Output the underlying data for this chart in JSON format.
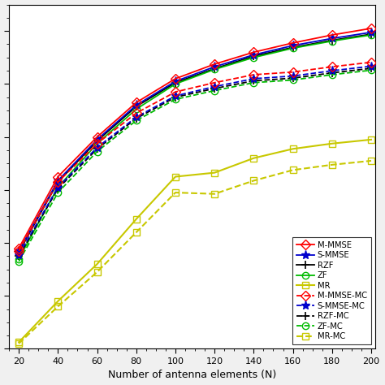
{
  "x": [
    20,
    40,
    60,
    80,
    100,
    120,
    140,
    160,
    180,
    200
  ],
  "M_MMSE": [
    3.8,
    6.5,
    8.0,
    9.3,
    10.2,
    10.75,
    11.2,
    11.55,
    11.85,
    12.1
  ],
  "S_MMSE": [
    3.7,
    6.35,
    7.9,
    9.2,
    10.1,
    10.65,
    11.1,
    11.45,
    11.72,
    11.95
  ],
  "RZF": [
    3.65,
    6.3,
    7.85,
    9.15,
    10.05,
    10.58,
    11.05,
    11.38,
    11.65,
    11.88
  ],
  "ZF": [
    3.4,
    6.1,
    7.75,
    9.05,
    10.0,
    10.55,
    11.0,
    11.35,
    11.62,
    11.85
  ],
  "MR": [
    0.25,
    1.8,
    3.2,
    4.9,
    6.5,
    6.65,
    7.2,
    7.55,
    7.75,
    7.9
  ],
  "M_MMSE_MC": [
    3.7,
    6.3,
    7.75,
    8.9,
    9.7,
    10.05,
    10.35,
    10.45,
    10.65,
    10.82
  ],
  "S_MMSE_MC": [
    3.55,
    6.1,
    7.6,
    8.75,
    9.55,
    9.9,
    10.2,
    10.3,
    10.5,
    10.67
  ],
  "RZF_MC": [
    3.5,
    6.05,
    7.55,
    8.7,
    9.5,
    9.83,
    10.12,
    10.22,
    10.42,
    10.59
  ],
  "ZF_MC": [
    3.3,
    5.9,
    7.45,
    8.62,
    9.42,
    9.75,
    10.05,
    10.15,
    10.35,
    10.52
  ],
  "MR_MC": [
    0.2,
    1.6,
    2.9,
    4.4,
    5.9,
    5.85,
    6.35,
    6.75,
    6.95,
    7.1
  ],
  "xlabel": "Number of antenna elements (N)",
  "colors": {
    "red": "#ff0000",
    "blue": "#0000cd",
    "black": "#000000",
    "green": "#00bb00",
    "yellow": "#c8c800"
  },
  "xlim": [
    15,
    202
  ],
  "ylim": [
    0,
    13
  ],
  "xticks": [
    20,
    40,
    60,
    80,
    100,
    120,
    140,
    160,
    180,
    200
  ],
  "figsize": [
    4.74,
    4.74
  ],
  "dpi": 100,
  "legend_entries": [
    "M-MMSE",
    "S-MMSE",
    "RZF",
    "ZF",
    "MR",
    "M-MMSE-MC",
    "S-MMSE-MC",
    "RZF-MC",
    "ZF-MC",
    "MR-MC"
  ]
}
